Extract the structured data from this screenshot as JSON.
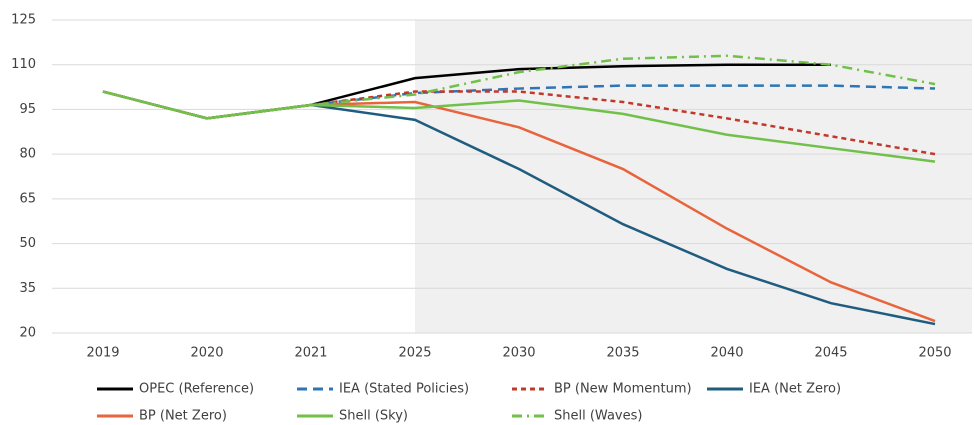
{
  "chart_data": {
    "type": "line",
    "categories": [
      "2019",
      "2020",
      "2021",
      "2025",
      "2030",
      "2035",
      "2040",
      "2045",
      "2050"
    ],
    "ylim": [
      20,
      125
    ],
    "yticks": [
      20,
      35,
      50,
      65,
      80,
      95,
      110,
      125
    ],
    "grid": true,
    "series": [
      {
        "name": "OPEC (Reference)",
        "color": "#000000",
        "dash": "solid",
        "values": [
          101,
          92,
          96.5,
          105.5,
          108.5,
          109.5,
          110,
          110,
          null
        ]
      },
      {
        "name": "IEA (Stated Policies)",
        "color": "#2e75b6",
        "dash": "dashed",
        "values": [
          101,
          92,
          96.5,
          100.5,
          102,
          103,
          103,
          103,
          102
        ]
      },
      {
        "name": "BP (New Momentum)",
        "color": "#c0392b",
        "dash": "dotted",
        "values": [
          101,
          92,
          96.5,
          101,
          101,
          97.5,
          92,
          86,
          80
        ]
      },
      {
        "name": "IEA (Net Zero)",
        "color": "#1f5c7f",
        "dash": "solid",
        "values": [
          101,
          92,
          96.5,
          91.5,
          75,
          56.5,
          41.5,
          30,
          23
        ]
      },
      {
        "name": "BP (Net Zero)",
        "color": "#e8643c",
        "dash": "solid",
        "values": [
          101,
          92,
          96.5,
          97.5,
          89,
          75,
          55,
          37,
          24
        ]
      },
      {
        "name": "Shell (Sky)",
        "color": "#70c04a",
        "dash": "solid",
        "values": [
          101,
          92,
          96.5,
          95.5,
          98,
          93.5,
          86.5,
          82,
          77.5
        ]
      },
      {
        "name": "Shell (Waves)",
        "color": "#70c04a",
        "dash": "dashdot",
        "values": [
          101,
          92,
          96.5,
          100,
          107.5,
          112,
          113,
          110,
          103.5
        ]
      }
    ]
  }
}
